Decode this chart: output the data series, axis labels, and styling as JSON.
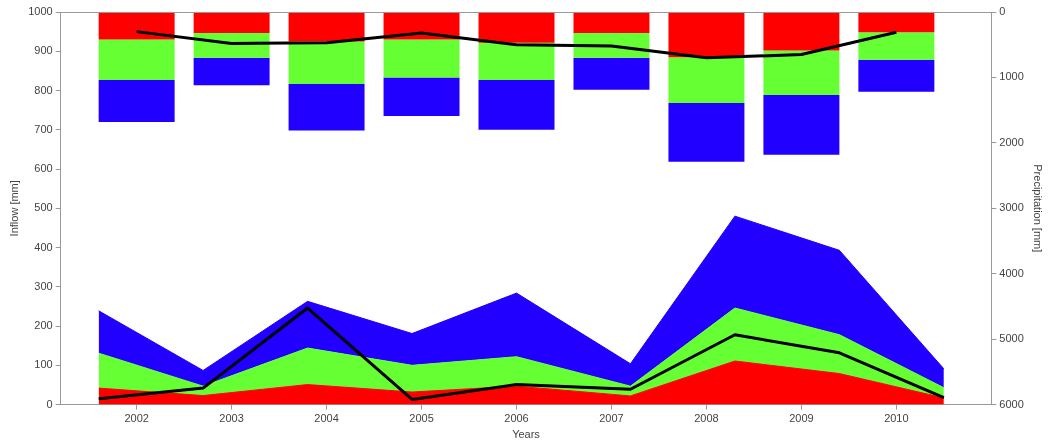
{
  "chart_data": {
    "type": "area",
    "xlabel": "Years",
    "ylabel": "Inflow [mm]",
    "y2label": "Precipitation [mm]",
    "stacked": true,
    "legend": false,
    "grid": false,
    "xlim": [
      2001.2,
      2011
    ],
    "xticks": [
      2002,
      2003,
      2004,
      2005,
      2006,
      2007,
      2008,
      2009,
      2010
    ],
    "ylim": [
      0,
      1000
    ],
    "yticks": [
      0,
      100,
      200,
      300,
      400,
      500,
      600,
      700,
      800,
      900,
      1000
    ],
    "y2lim": [
      6000,
      0
    ],
    "y2ticks": [
      0,
      1000,
      2000,
      3000,
      4000,
      5000,
      6000
    ],
    "x": [
      2001.6,
      2002.7,
      2003.8,
      2004.9,
      2006.0,
      2007.2,
      2008.3,
      2009.4,
      2010.5
    ],
    "series": [
      {
        "color": "#ff0000",
        "values": [
          42,
          23,
          51,
          32,
          47,
          22,
          111,
          79,
          17
        ]
      },
      {
        "color": "#66ff33",
        "values": [
          89,
          24,
          93,
          68,
          75,
          25,
          135,
          99,
          26
        ]
      },
      {
        "color": "#2200ff",
        "values": [
          108,
          40,
          119,
          81,
          162,
          57,
          234,
          215,
          48
        ]
      },
      {
        "type": "line",
        "color": "#000000",
        "values": [
          15,
          42,
          246,
          13,
          51,
          39,
          178,
          132,
          18
        ]
      },
      {
        "type": "bar",
        "axis": "y2",
        "color": "#ff0000",
        "x": [
          2002,
          2003,
          2004,
          2005,
          2006,
          2007,
          2008,
          2009,
          2010
        ],
        "values": [
          420,
          320,
          450,
          420,
          470,
          320,
          690,
          590,
          310
        ]
      },
      {
        "type": "bar",
        "axis": "y2",
        "color": "#66ff33",
        "x": [
          2002,
          2003,
          2004,
          2005,
          2006,
          2007,
          2008,
          2009,
          2010
        ],
        "values": [
          620,
          380,
          650,
          580,
          570,
          380,
          700,
          680,
          420
        ]
      },
      {
        "type": "bar",
        "axis": "y2",
        "color": "#2200ff",
        "x": [
          2002,
          2003,
          2004,
          2005,
          2006,
          2007,
          2008,
          2009,
          2010
        ],
        "values": [
          640,
          420,
          710,
          590,
          760,
          490,
          900,
          910,
          490
        ]
      },
      {
        "type": "line",
        "axis": "y2",
        "color": "#000000",
        "x": [
          2002,
          2003,
          2004,
          2005,
          2006,
          2007,
          2008,
          2009,
          2010
        ],
        "values": [
          300,
          480,
          470,
          320,
          500,
          520,
          700,
          650,
          310
        ]
      }
    ]
  }
}
